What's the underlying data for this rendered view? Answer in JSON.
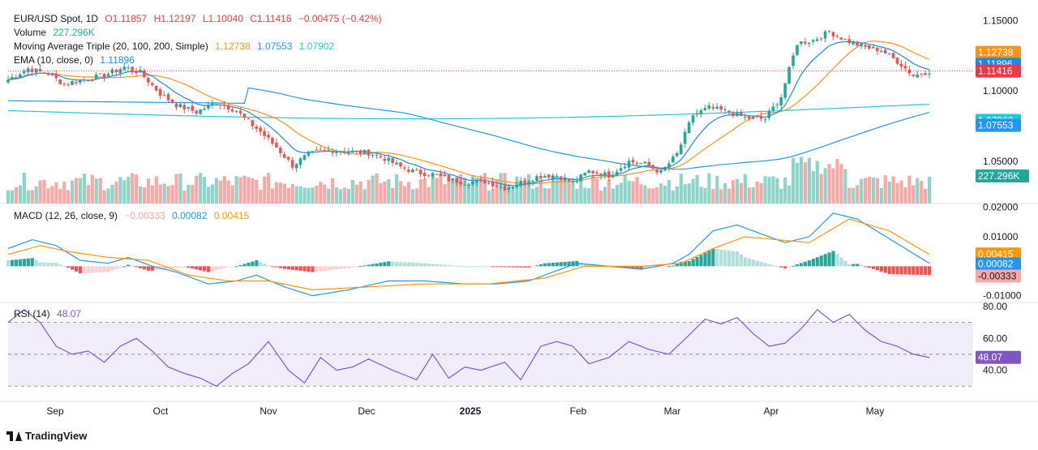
{
  "legend": {
    "main_title": "EUR/USD Spot, 1D",
    "open": "O1.11857",
    "high": "H1.12197",
    "low": "L1.10040",
    "close": "C1.11416",
    "change": "−0.00475 (−0.42%)",
    "volume_label": "Volume",
    "volume_value": "227.296K",
    "ma_label": "Moving Average Triple (20, 100, 200, Simple)",
    "ma20": "1.12738",
    "ma100": "1.07553",
    "ma200": "1.07902",
    "ema_label": "EMA (10, close, 0)",
    "ema_value": "1.11896",
    "macd_label": "MACD (12, 26, close, 9)",
    "macd_hist": "−0.00333",
    "macd_line": "0.00082",
    "macd_signal": "0.00415",
    "rsi_label": "RSI (14)",
    "rsi_value": "48.07"
  },
  "branding": {
    "logo_text": "TradingView"
  },
  "colors": {
    "up": "#26a69a",
    "down": "#ef5350",
    "ma20": "#f7931a",
    "ma100": "#2196f3",
    "ma200": "#26c6da",
    "ema": "#1e88e5",
    "macd": "#2196f3",
    "signal": "#ff9800",
    "rsi": "#7e57c2",
    "vol_up": "#8fd4c9",
    "vol_down": "#f7a9a7"
  },
  "chart_data": [
    {
      "type": "candlestick",
      "title": "EUR/USD Spot, 1D",
      "xticks": [
        "Sep",
        "Oct",
        "Nov",
        "Dec",
        "2025",
        "Feb",
        "Mar",
        "Apr",
        "May"
      ],
      "yticks": [
        "1.15000",
        "1.10000",
        "1.05000"
      ],
      "ylim": [
        1.02,
        1.16
      ],
      "close_path": [
        [
          0,
          1.108
        ],
        [
          5,
          1.116
        ],
        [
          10,
          1.112
        ],
        [
          14,
          1.105
        ],
        [
          19,
          1.108
        ],
        [
          24,
          1.111
        ],
        [
          29,
          1.117
        ],
        [
          33,
          1.113
        ],
        [
          38,
          1.098
        ],
        [
          42,
          1.09
        ],
        [
          47,
          1.085
        ],
        [
          52,
          1.092
        ],
        [
          57,
          1.086
        ],
        [
          60,
          1.078
        ],
        [
          63,
          1.071
        ],
        [
          67,
          1.06
        ],
        [
          71,
          1.047
        ],
        [
          75,
          1.055
        ],
        [
          80,
          1.058
        ],
        [
          85,
          1.057
        ],
        [
          90,
          1.056
        ],
        [
          94,
          1.052
        ],
        [
          98,
          1.046
        ],
        [
          102,
          1.042
        ],
        [
          106,
          1.041
        ],
        [
          110,
          1.037
        ],
        [
          114,
          1.035
        ],
        [
          119,
          1.036
        ],
        [
          124,
          1.031
        ],
        [
          128,
          1.035
        ],
        [
          133,
          1.04
        ],
        [
          137,
          1.04
        ],
        [
          141,
          1.035
        ],
        [
          145,
          1.043
        ],
        [
          150,
          1.04
        ],
        [
          155,
          1.05
        ],
        [
          159,
          1.048
        ],
        [
          163,
          1.042
        ],
        [
          167,
          1.055
        ],
        [
          171,
          1.083
        ],
        [
          175,
          1.088
        ],
        [
          180,
          1.085
        ],
        [
          184,
          1.081
        ],
        [
          189,
          1.08
        ],
        [
          193,
          1.096
        ],
        [
          197,
          1.134
        ],
        [
          201,
          1.136
        ],
        [
          205,
          1.142
        ],
        [
          210,
          1.135
        ],
        [
          214,
          1.131
        ],
        [
          218,
          1.129
        ],
        [
          222,
          1.121
        ],
        [
          226,
          1.111
        ],
        [
          230,
          1.114
        ]
      ],
      "annotation_labels": [
        {
          "text": "1.12738",
          "value": 1.12738,
          "color": "#f7931a"
        },
        {
          "text": "1.11896",
          "value": 1.11896,
          "color": "#1e88e5"
        },
        {
          "text": "1.11416",
          "value": 1.11416,
          "color": "#f23645"
        },
        {
          "text": "1.07902",
          "value": 1.07902,
          "color": "#26c6da"
        },
        {
          "text": "1.07553",
          "value": 1.07553,
          "color": "#2196f3"
        },
        {
          "text": "227.296K",
          "value": 227296,
          "color": "#26a69a",
          "pane": "volume"
        }
      ]
    },
    {
      "type": "line",
      "title": "MACD (12, 26, close, 9)",
      "yticks": [
        "0.02000",
        "0.01000",
        "-0.01000"
      ],
      "ylim": [
        -0.012,
        0.021
      ],
      "macd_path": [
        [
          0,
          0.006
        ],
        [
          6,
          0.009
        ],
        [
          12,
          0.007
        ],
        [
          18,
          0.002
        ],
        [
          25,
          0.001
        ],
        [
          30,
          0.003
        ],
        [
          36,
          0.0
        ],
        [
          42,
          -0.002
        ],
        [
          50,
          -0.006
        ],
        [
          57,
          -0.005
        ],
        [
          62,
          -0.003
        ],
        [
          69,
          -0.007
        ],
        [
          76,
          -0.01
        ],
        [
          85,
          -0.008
        ],
        [
          95,
          -0.005
        ],
        [
          104,
          -0.005
        ],
        [
          114,
          -0.006
        ],
        [
          122,
          -0.006
        ],
        [
          130,
          -0.005
        ],
        [
          136,
          -0.002
        ],
        [
          142,
          0.001
        ],
        [
          150,
          0.0
        ],
        [
          158,
          -0.001
        ],
        [
          166,
          0.001
        ],
        [
          170,
          0.004
        ],
        [
          176,
          0.012
        ],
        [
          182,
          0.014
        ],
        [
          188,
          0.011
        ],
        [
          194,
          0.008
        ],
        [
          200,
          0.01
        ],
        [
          206,
          0.018
        ],
        [
          212,
          0.016
        ],
        [
          218,
          0.011
        ],
        [
          224,
          0.006
        ],
        [
          230,
          0.001
        ]
      ],
      "signal_path": [
        [
          0,
          0.004
        ],
        [
          8,
          0.007
        ],
        [
          15,
          0.005
        ],
        [
          25,
          0.003
        ],
        [
          35,
          0.002
        ],
        [
          45,
          -0.003
        ],
        [
          55,
          -0.005
        ],
        [
          65,
          -0.005
        ],
        [
          76,
          -0.008
        ],
        [
          90,
          -0.007
        ],
        [
          104,
          -0.006
        ],
        [
          120,
          -0.006
        ],
        [
          134,
          -0.004
        ],
        [
          144,
          0.0
        ],
        [
          158,
          0.0
        ],
        [
          168,
          0.001
        ],
        [
          176,
          0.006
        ],
        [
          184,
          0.01
        ],
        [
          192,
          0.009
        ],
        [
          200,
          0.008
        ],
        [
          210,
          0.016
        ],
        [
          220,
          0.012
        ],
        [
          230,
          0.004
        ]
      ],
      "annotation_labels": [
        {
          "text": "0.00415",
          "value": 0.00415,
          "color": "#ff9800"
        },
        {
          "text": "0.00082",
          "value": 0.00082,
          "color": "#2196f3"
        },
        {
          "text": "-0.00333",
          "value": -0.00333,
          "color": "#f7a9a7"
        }
      ]
    },
    {
      "type": "line",
      "title": "RSI (14)",
      "yticks": [
        "80.00",
        "60.00",
        "40.00"
      ],
      "ylim": [
        22,
        82
      ],
      "bands": [
        70,
        50,
        30
      ],
      "rsi_path": [
        [
          0,
          70
        ],
        [
          4,
          78
        ],
        [
          8,
          70
        ],
        [
          12,
          55
        ],
        [
          16,
          50
        ],
        [
          20,
          52
        ],
        [
          24,
          45
        ],
        [
          28,
          55
        ],
        [
          32,
          60
        ],
        [
          36,
          52
        ],
        [
          40,
          42
        ],
        [
          44,
          38
        ],
        [
          48,
          35
        ],
        [
          52,
          30
        ],
        [
          56,
          38
        ],
        [
          60,
          44
        ],
        [
          65,
          58
        ],
        [
          70,
          40
        ],
        [
          74,
          32
        ],
        [
          78,
          48
        ],
        [
          82,
          40
        ],
        [
          86,
          42
        ],
        [
          90,
          47
        ],
        [
          96,
          40
        ],
        [
          102,
          34
        ],
        [
          106,
          50
        ],
        [
          110,
          35
        ],
        [
          114,
          42
        ],
        [
          118,
          40
        ],
        [
          124,
          45
        ],
        [
          128,
          34
        ],
        [
          133,
          55
        ],
        [
          137,
          58
        ],
        [
          141,
          55
        ],
        [
          145,
          44
        ],
        [
          150,
          48
        ],
        [
          155,
          58
        ],
        [
          160,
          53
        ],
        [
          165,
          50
        ],
        [
          170,
          62
        ],
        [
          174,
          72
        ],
        [
          178,
          69
        ],
        [
          182,
          73
        ],
        [
          186,
          63
        ],
        [
          190,
          55
        ],
        [
          194,
          57
        ],
        [
          198,
          66
        ],
        [
          202,
          78
        ],
        [
          206,
          70
        ],
        [
          210,
          75
        ],
        [
          214,
          65
        ],
        [
          218,
          58
        ],
        [
          222,
          55
        ],
        [
          226,
          50
        ],
        [
          230,
          48
        ]
      ],
      "annotation_labels": [
        {
          "text": "48.07",
          "value": 48.07,
          "color": "#7e57c2"
        }
      ]
    }
  ]
}
